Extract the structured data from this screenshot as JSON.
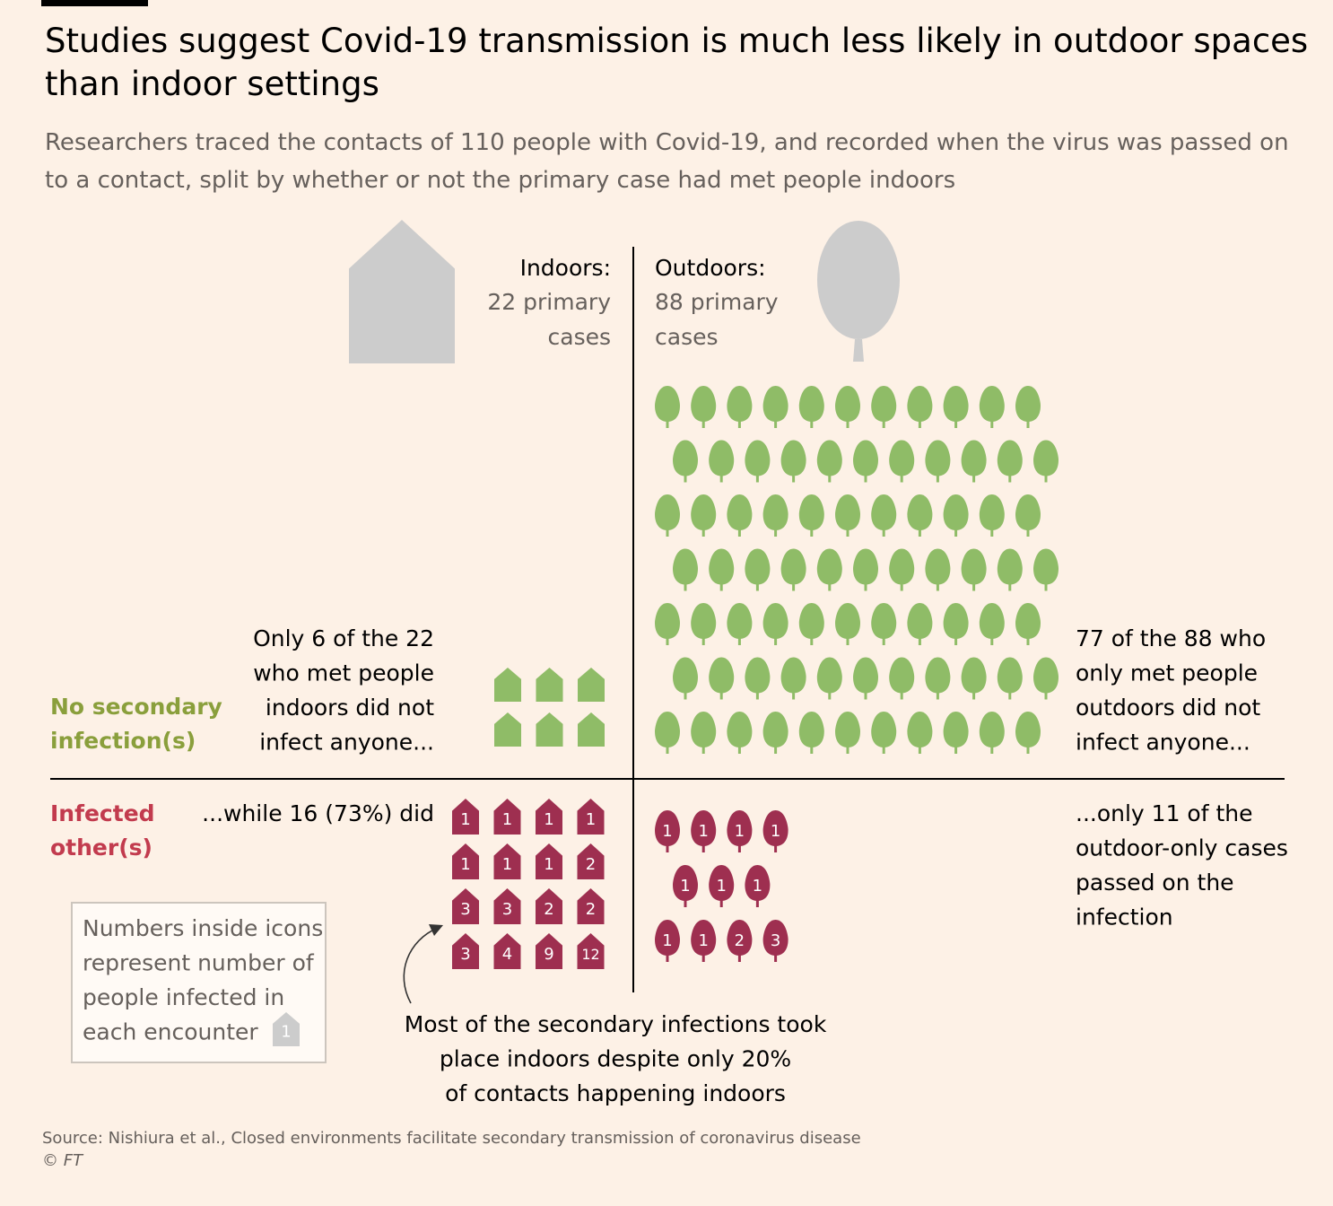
{
  "title": "Studies suggest Covid-19 transmission is much less likely in outdoor spaces than indoor settings",
  "subtitle": "Researchers traced the contacts of 110 people with Covid-19, and recorded when the virus was passed on to a contact, split by whether or not the primary case had met people indoors",
  "source": "Source: Nishiura et al., Closed environments facilitate secondary transmission of coronavirus disease",
  "credit": "© FT",
  "colors": {
    "background": "#fdf1e6",
    "no_infection": "#8fbc67",
    "infected": "#9e2f50",
    "header_icon": "#cccccc",
    "muted_text": "#66605c"
  },
  "chart_data": {
    "type": "pictogram",
    "indoors": {
      "label": "Indoors:",
      "count_lines": [
        "22 primary",
        "cases"
      ],
      "primary_cases": 22,
      "no_secondary_count": 6,
      "infected_values": [
        1,
        1,
        1,
        1,
        1,
        1,
        1,
        2,
        3,
        3,
        2,
        2,
        3,
        4,
        9,
        12
      ]
    },
    "outdoors": {
      "label": "Outdoors:",
      "count_lines": [
        "88 primary",
        "cases"
      ],
      "primary_cases": 88,
      "no_secondary_count": 77,
      "infected_values": [
        1,
        1,
        1,
        1,
        1,
        1,
        1,
        1,
        1,
        2,
        3
      ]
    },
    "row_labels": {
      "no_secondary": [
        "No secondary",
        "infection(s)"
      ],
      "infected": [
        "Infected",
        "other(s)"
      ]
    },
    "annotations": {
      "indoor_none": [
        "Only 6 of the 22",
        "who met people",
        "indoors did not",
        "infect anyone..."
      ],
      "indoor_did": [
        "...while 16 (73%) did"
      ],
      "outdoor_none": [
        "77 of the 88 who",
        "only met people",
        "outdoors did not",
        "infect anyone..."
      ],
      "outdoor_did": [
        "...only 11 of the",
        "outdoor-only cases",
        "passed on the",
        "infection"
      ],
      "bottom_note": [
        "Most of the secondary infections took",
        "place indoors despite only 20%",
        "of contacts happening indoors"
      ]
    },
    "legend": {
      "lines": [
        "Numbers inside icons",
        "represent number of",
        "people infected in",
        "each encounter"
      ],
      "icon_value": 1
    }
  }
}
